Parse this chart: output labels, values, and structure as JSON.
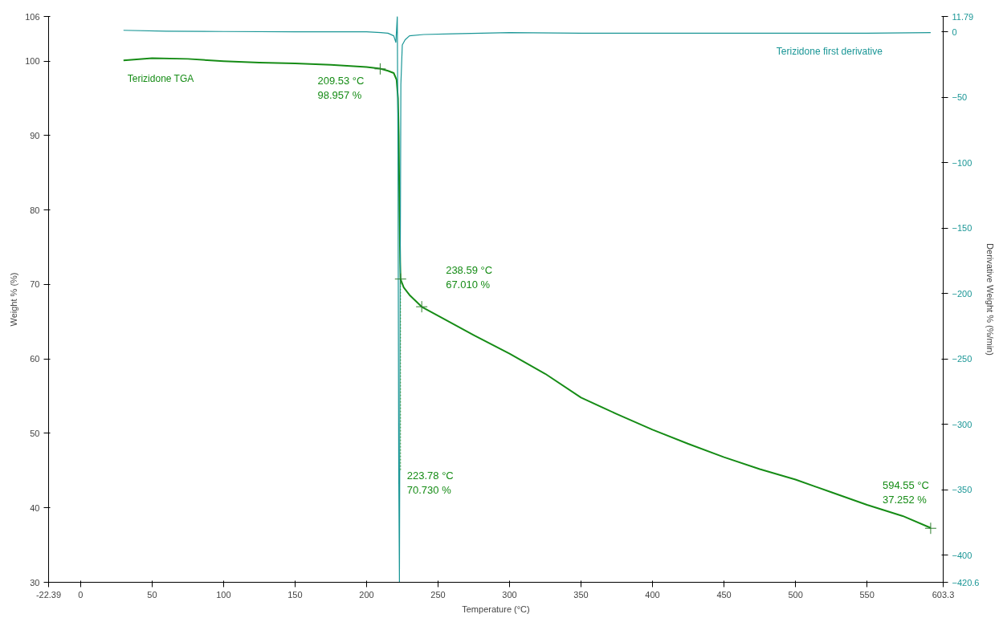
{
  "chart_data": {
    "type": "line",
    "xlabel": "Temperature (°C)",
    "ylabel": "Weight % (%)",
    "y2label": "Derivative Weight % (%/min)",
    "xlim": [
      -22.39,
      603.3
    ],
    "xticks": [
      {
        "value": -22.39,
        "label": "-22.39"
      },
      0,
      50,
      100,
      150,
      200,
      250,
      300,
      350,
      400,
      450,
      500,
      550,
      {
        "value": 603.3,
        "label": "603.3"
      }
    ],
    "ylim": [
      30,
      106
    ],
    "yticks": [
      30,
      40,
      50,
      60,
      70,
      80,
      90,
      100,
      106
    ],
    "y2lim": [
      -420.6,
      11.79
    ],
    "y2ticks": [
      -420.6,
      -400,
      -350,
      -300,
      -250,
      -200,
      -150,
      -100,
      -50,
      0,
      11.79
    ],
    "grid": false,
    "series": [
      {
        "name": "Terizidone TGA",
        "color": "#168c16",
        "x": [
          30,
          50,
          75,
          100,
          125,
          150,
          175,
          200,
          209.53,
          215,
          219,
          221,
          222,
          222.5,
          223,
          223.5,
          223.78,
          226,
          230,
          238.59,
          250,
          275,
          300,
          325,
          350,
          375,
          400,
          425,
          450,
          475,
          500,
          525,
          550,
          575,
          594.55
        ],
        "values": [
          100.1,
          100.4,
          100.3,
          100.0,
          99.8,
          99.7,
          99.5,
          99.2,
          99.0,
          98.7,
          98.4,
          97.5,
          95,
          90,
          80,
          73,
          70.7,
          69.6,
          68.6,
          67.0,
          65.8,
          63.2,
          60.7,
          58.0,
          54.8,
          52.6,
          50.5,
          48.6,
          46.8,
          45.2,
          43.8,
          42.1,
          40.4,
          38.9,
          37.3
        ]
      },
      {
        "name": "Terizidone first derivative",
        "color": "#1a9696",
        "axis": "y2",
        "x": [
          30,
          60,
          100,
          150,
          200,
          210,
          215,
          219,
          220.5,
          221.5,
          222,
          222.5,
          223,
          223.5,
          224,
          225,
          227,
          230,
          240,
          260,
          300,
          350,
          400,
          450,
          500,
          550,
          594.55
        ],
        "values": [
          1.2,
          0.5,
          0.3,
          0.1,
          0,
          -0.5,
          -1,
          -3,
          -8,
          11.7,
          -100,
          -334,
          -420.6,
          -200,
          -40,
          -10,
          -6,
          -3,
          -2,
          -1.5,
          -0.5,
          -1,
          -1,
          -1,
          -1,
          -1,
          -0.5
        ]
      }
    ],
    "annotations": [
      {
        "text": "209.53 °C\n98.957 %",
        "x": 209.53,
        "y": 98.957
      },
      {
        "text": "238.59 °C\n67.010 %",
        "x": 238.59,
        "y": 67.01
      },
      {
        "text": "223.78 °C\n70.730 %",
        "x": 223.78,
        "y": 70.73
      },
      {
        "text": "594.55 °C\n37.252 %",
        "x": 594.55,
        "y": 37.252
      }
    ]
  }
}
